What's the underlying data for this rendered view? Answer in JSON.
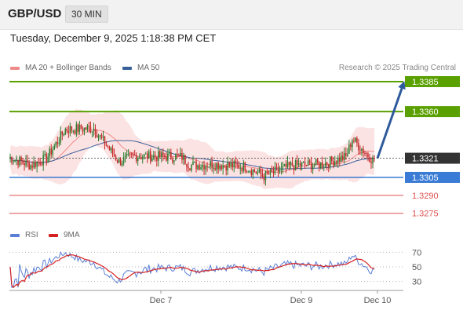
{
  "header": {
    "pair": "GBP/USD",
    "timeframe": "30 MIN"
  },
  "datetime": "Tuesday, December 9, 2025 1:18:38 PM CET",
  "legend": {
    "ma20": {
      "label": "MA 20 + Bollinger Bands",
      "color": "#f08a8a"
    },
    "ma50": {
      "label": "MA 50",
      "color": "#3a5f9a"
    },
    "credit": "Research © 2025 Trading Central"
  },
  "rsi_legend": {
    "rsi": {
      "label": "RSI",
      "color": "#5b7fd6"
    },
    "ma9": {
      "label": "9MA",
      "color": "#d62020"
    }
  },
  "chart_data": [
    {
      "type": "candlestick",
      "ylim": [
        1.3263,
        1.3404
      ],
      "levels": [
        {
          "value": "1.3385",
          "y": 1.3385,
          "kind": "resistance",
          "color": "#5aa000"
        },
        {
          "value": "1.3360",
          "y": 1.336,
          "kind": "resistance",
          "color": "#5aa000"
        },
        {
          "value": "1.3321",
          "y": 1.3321,
          "kind": "current",
          "color": "#333333"
        },
        {
          "value": "1.3305",
          "y": 1.3305,
          "kind": "pivot",
          "color": "#3a7bd5"
        },
        {
          "value": "1.3290",
          "y": 1.329,
          "kind": "support",
          "color": "#e05050"
        },
        {
          "value": "1.3275",
          "y": 1.3275,
          "kind": "support",
          "color": "#e05050"
        }
      ],
      "x_ticks": [
        "Dec 7",
        "Dec 9",
        "Dec 10"
      ],
      "arrow": {
        "from": 1.3321,
        "to": 1.3385,
        "color": "#2e5a9c"
      },
      "candle_colors": {
        "up": "#2e7d32",
        "down": "#c62828"
      }
    },
    {
      "type": "line",
      "title": "RSI",
      "ylim": [
        20,
        80
      ],
      "y_ticks": [
        30,
        50,
        70
      ],
      "series": [
        {
          "name": "RSI",
          "color": "#5b7fd6"
        },
        {
          "name": "9MA",
          "color": "#d62020"
        }
      ]
    }
  ]
}
